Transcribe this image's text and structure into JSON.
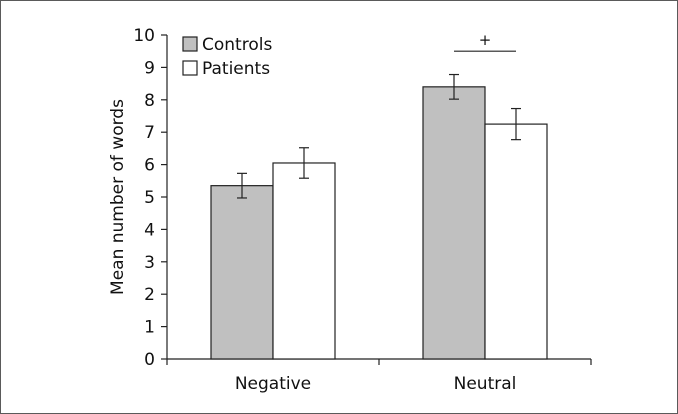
{
  "chart_data": {
    "type": "bar",
    "categories": [
      "Negative",
      "Neutral"
    ],
    "series": [
      {
        "name": "Controls",
        "values": [
          5.35,
          8.4
        ],
        "errors": [
          0.38,
          0.38
        ],
        "color": "#c0c0c0"
      },
      {
        "name": "Patients",
        "values": [
          6.05,
          7.25
        ],
        "errors": [
          0.47,
          0.48
        ],
        "color": "#ffffff"
      }
    ],
    "title": "",
    "xlabel": "",
    "ylabel": "Mean number of words",
    "ylim": [
      0,
      10
    ],
    "yticks": [
      "0",
      "1",
      "2",
      "3",
      "4",
      "5",
      "6",
      "7",
      "8",
      "9",
      "10"
    ],
    "grid": false,
    "legend_position": "top-left",
    "annotations": [
      {
        "text": "+",
        "category": "Neutral",
        "value": 9.5
      }
    ]
  }
}
